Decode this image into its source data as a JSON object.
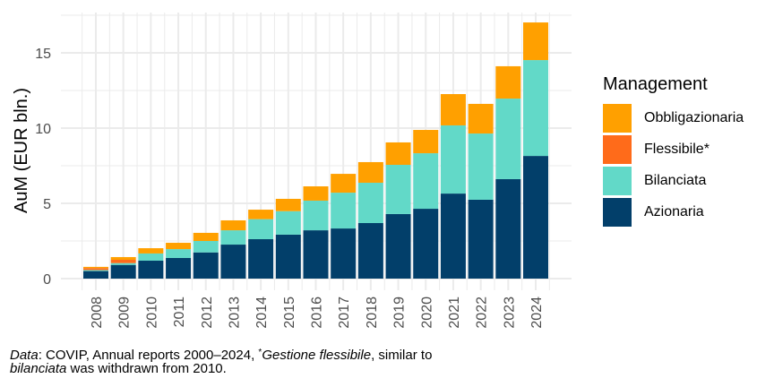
{
  "chart_data": {
    "type": "bar",
    "stacked": true,
    "title": "",
    "xlabel": "",
    "ylabel": "AuM (EUR bln.)",
    "ylim": [
      0,
      17.5
    ],
    "yticks": [
      0,
      5,
      10,
      15
    ],
    "grid": true,
    "categories": [
      "2008",
      "2009",
      "2010",
      "2011",
      "2012",
      "2013",
      "2014",
      "2015",
      "2016",
      "2017",
      "2018",
      "2019",
      "2020",
      "2021",
      "2022",
      "2023",
      "2024"
    ],
    "legend": {
      "title": "Management",
      "position": "right"
    },
    "series": [
      {
        "name": "Azionaria",
        "color": "#023F6A",
        "values": [
          0.5,
          0.91,
          1.19,
          1.37,
          1.74,
          2.26,
          2.62,
          2.92,
          3.21,
          3.33,
          3.69,
          4.29,
          4.64,
          5.65,
          5.24,
          6.61,
          8.15
        ]
      },
      {
        "name": "Bilanciata",
        "color": "#62D9C8",
        "values": [
          0.07,
          0.12,
          0.48,
          0.59,
          0.76,
          0.95,
          1.33,
          1.56,
          1.97,
          2.38,
          2.68,
          3.27,
          3.69,
          4.53,
          4.4,
          5.35,
          6.37
        ]
      },
      {
        "name": "Flessibile*",
        "color": "#FF6B1A",
        "values": [
          0.13,
          0.22,
          0,
          0,
          0,
          0,
          0,
          0,
          0,
          0,
          0,
          0,
          0,
          0,
          0,
          0,
          0
        ]
      },
      {
        "name": "Obbligazionaria",
        "color": "#FFA000",
        "values": [
          0.08,
          0.18,
          0.35,
          0.42,
          0.54,
          0.66,
          0.63,
          0.82,
          0.95,
          1.25,
          1.37,
          1.49,
          1.55,
          2.08,
          1.97,
          2.15,
          2.5
        ]
      }
    ],
    "legend_order": [
      "Obbligazionaria",
      "Flessibile*",
      "Bilanciata",
      "Azionaria"
    ]
  },
  "caption": {
    "data_label": "Data",
    "source_text": ": COVIP, Annual reports 2000–2024, ",
    "footnote_mark": "*",
    "gestione_text": "Gestione flessibile",
    "middle_text": ", similar to",
    "bilanciata_text": "bilanciata",
    "end_text": " was withdrawn from 2010."
  }
}
